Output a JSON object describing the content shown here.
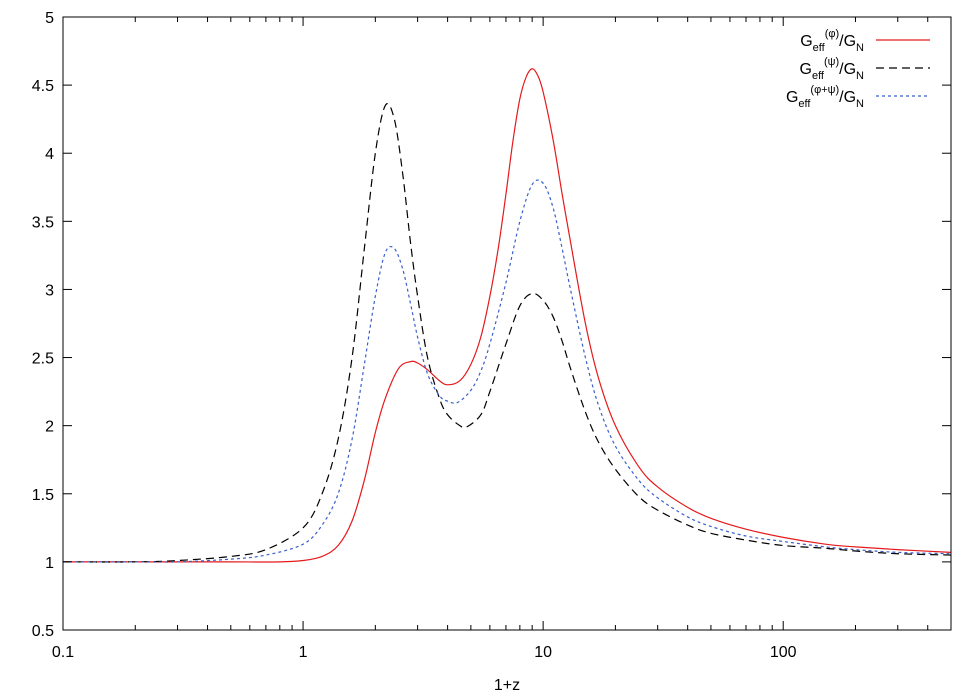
{
  "chart_data": {
    "type": "line",
    "xlabel": "1+z",
    "ylabel": "",
    "xscale": "log",
    "xlim": [
      0.1,
      500
    ],
    "ylim": [
      0.5,
      5
    ],
    "grid": false,
    "legend_position": "top-right",
    "x_ticks": [
      {
        "value": 0.1,
        "label": "0.1"
      },
      {
        "value": 1,
        "label": "1"
      },
      {
        "value": 10,
        "label": "10"
      },
      {
        "value": 100,
        "label": "100"
      }
    ],
    "y_ticks": [
      {
        "value": 0.5,
        "label": "0.5"
      },
      {
        "value": 1,
        "label": "1"
      },
      {
        "value": 1.5,
        "label": "1.5"
      },
      {
        "value": 2,
        "label": "2"
      },
      {
        "value": 2.5,
        "label": "2.5"
      },
      {
        "value": 3,
        "label": "3"
      },
      {
        "value": 3.5,
        "label": "3.5"
      },
      {
        "value": 4,
        "label": "4"
      },
      {
        "value": 4.5,
        "label": "4.5"
      },
      {
        "value": 5,
        "label": "5"
      }
    ],
    "series": [
      {
        "name": "Geff(φ)/GN",
        "legend": {
          "base": "G",
          "sub1": "eff",
          "sup": "(φ)",
          "tail": "/G",
          "sub2": "N"
        },
        "color": "#e41a1c",
        "dash": "solid",
        "x": [
          0.1,
          0.2,
          0.3,
          0.5,
          0.8,
          1.0,
          1.2,
          1.4,
          1.6,
          1.8,
          2.0,
          2.2,
          2.5,
          2.8,
          3.0,
          3.3,
          3.7,
          4.0,
          4.5,
          5.0,
          5.5,
          6.0,
          6.5,
          7.0,
          7.5,
          8.0,
          8.5,
          9.0,
          9.5,
          10,
          11,
          12,
          13,
          15,
          17,
          20,
          25,
          30,
          40,
          50,
          70,
          100,
          150,
          200,
          300,
          500
        ],
        "y": [
          1.0,
          1.0,
          1.0,
          1.0,
          1.0,
          1.01,
          1.04,
          1.12,
          1.3,
          1.6,
          1.95,
          2.2,
          2.42,
          2.47,
          2.46,
          2.41,
          2.33,
          2.3,
          2.33,
          2.45,
          2.65,
          2.95,
          3.3,
          3.7,
          4.1,
          4.4,
          4.56,
          4.62,
          4.57,
          4.45,
          4.1,
          3.7,
          3.35,
          2.75,
          2.35,
          2.0,
          1.7,
          1.55,
          1.4,
          1.32,
          1.24,
          1.18,
          1.13,
          1.11,
          1.09,
          1.07
        ]
      },
      {
        "name": "Geff(ψ)/GN",
        "legend": {
          "base": "G",
          "sub1": "eff",
          "sup": "(ψ)",
          "tail": "/G",
          "sub2": "N"
        },
        "color": "#000000",
        "dash": "8,5",
        "x": [
          0.1,
          0.2,
          0.3,
          0.5,
          0.7,
          1.0,
          1.2,
          1.4,
          1.6,
          1.8,
          2.0,
          2.2,
          2.4,
          2.6,
          2.8,
          3.0,
          3.3,
          3.7,
          4.0,
          4.5,
          4.8,
          5.5,
          6.0,
          7.0,
          8.0,
          9.0,
          10,
          11,
          12,
          13,
          15,
          17,
          20,
          25,
          30,
          40,
          50,
          70,
          100,
          150,
          200,
          300,
          500
        ],
        "y": [
          1.0,
          1.0,
          1.01,
          1.04,
          1.09,
          1.25,
          1.5,
          1.9,
          2.5,
          3.3,
          4.0,
          4.35,
          4.25,
          3.85,
          3.35,
          2.95,
          2.5,
          2.2,
          2.08,
          2.0,
          1.99,
          2.08,
          2.25,
          2.6,
          2.88,
          2.97,
          2.92,
          2.8,
          2.62,
          2.42,
          2.1,
          1.88,
          1.68,
          1.48,
          1.38,
          1.27,
          1.21,
          1.16,
          1.12,
          1.1,
          1.08,
          1.06,
          1.05
        ]
      },
      {
        "name": "Geff(φ+ψ)/GN",
        "legend": {
          "base": "G",
          "sub1": "eff",
          "sup": "(φ+ψ)",
          "tail": "/G",
          "sub2": "N"
        },
        "color": "#3a5fcd",
        "dash": "3,3",
        "x": [
          0.1,
          0.2,
          0.3,
          0.5,
          0.7,
          1.0,
          1.2,
          1.4,
          1.6,
          1.8,
          2.0,
          2.2,
          2.4,
          2.6,
          2.8,
          3.0,
          3.3,
          3.7,
          4.0,
          4.4,
          5.0,
          5.5,
          6.0,
          7.0,
          8.0,
          9.0,
          10,
          11,
          12,
          13,
          15,
          17,
          20,
          25,
          30,
          40,
          50,
          70,
          100,
          150,
          200,
          300,
          500
        ],
        "y": [
          1.0,
          1.0,
          1.0,
          1.02,
          1.05,
          1.13,
          1.27,
          1.5,
          1.9,
          2.45,
          2.95,
          3.27,
          3.3,
          3.15,
          2.9,
          2.65,
          2.38,
          2.22,
          2.18,
          2.17,
          2.26,
          2.4,
          2.6,
          3.05,
          3.5,
          3.77,
          3.78,
          3.6,
          3.3,
          3.0,
          2.5,
          2.15,
          1.85,
          1.6,
          1.47,
          1.33,
          1.26,
          1.19,
          1.15,
          1.11,
          1.09,
          1.07,
          1.06
        ]
      }
    ]
  }
}
